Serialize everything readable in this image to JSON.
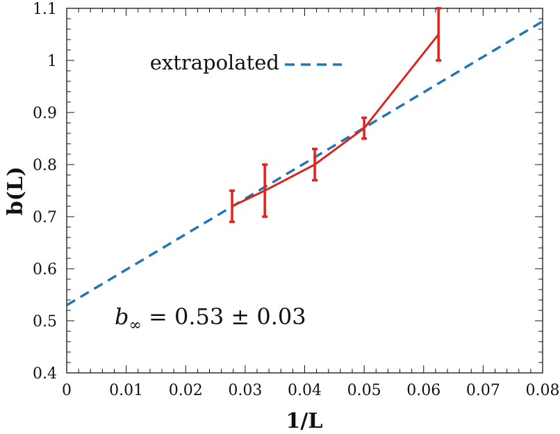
{
  "chart_data": {
    "type": "line",
    "xlabel": "1/L",
    "ylabel": "b(L)",
    "xlim": [
      0,
      0.08
    ],
    "ylim": [
      0.4,
      1.1
    ],
    "x_ticks": [
      0,
      0.01,
      0.02,
      0.03,
      0.04,
      0.05,
      0.06,
      0.07,
      0.08
    ],
    "x_tick_labels": [
      "0",
      "0.01",
      "0.02",
      "0.03",
      "0.04",
      "0.05",
      "0.06",
      "0.07",
      "0.08"
    ],
    "y_ticks": [
      0.4,
      0.5,
      0.6,
      0.7,
      0.8,
      0.9,
      1.0,
      1.1
    ],
    "y_tick_labels": [
      "0.4",
      "0.5",
      "0.6",
      "0.7",
      "0.8",
      "0.9",
      "1",
      "1.1"
    ],
    "grid": false,
    "legend_position": "top-left",
    "series": [
      {
        "style": "solid-with-errorbars",
        "color": "#e0231c",
        "x": [
          0.0278,
          0.0333,
          0.0417,
          0.05,
          0.0625
        ],
        "y": [
          0.72,
          0.75,
          0.8,
          0.87,
          1.05
        ],
        "y_err": [
          0.03,
          0.05,
          0.03,
          0.02,
          0.05
        ]
      },
      {
        "name": "extrapolated",
        "style": "dashed",
        "color": "#1f77b4",
        "x": [
          0,
          0.08
        ],
        "y": [
          0.53,
          1.075
        ]
      }
    ],
    "annotation": {
      "symbol": "b",
      "subscript": "∞",
      "text": " = 0.53 ± 0.03"
    }
  }
}
